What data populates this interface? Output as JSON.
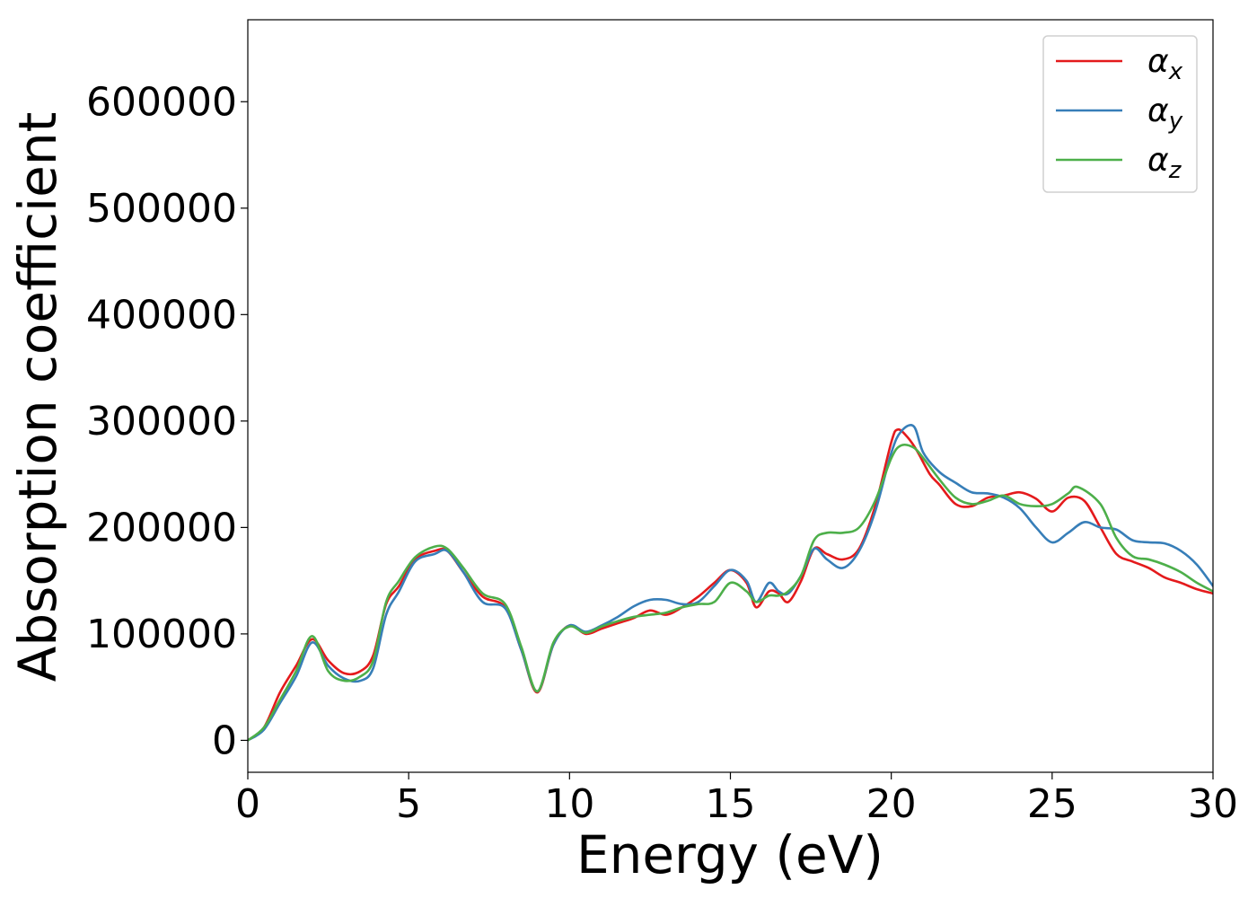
{
  "chart_data": {
    "type": "line",
    "title": "",
    "xlabel": "Energy (eV)",
    "ylabel": "Absorption coefficient",
    "xlim": [
      0,
      30
    ],
    "ylim": [
      -30000,
      677000
    ],
    "xticks": [
      0,
      5,
      10,
      15,
      20,
      25,
      30
    ],
    "yticks": [
      0,
      100000,
      200000,
      300000,
      400000,
      500000,
      600000
    ],
    "grid": false,
    "legend_position": "top-right",
    "series": [
      {
        "name": "α",
        "subscript": "x",
        "color": "#e41a1c",
        "x": [
          0,
          0.5,
          1.0,
          1.5,
          2.0,
          2.5,
          3.0,
          3.5,
          3.9,
          4.3,
          4.7,
          5.2,
          5.8,
          6.2,
          6.7,
          7.3,
          8.0,
          8.5,
          9.0,
          9.5,
          10.0,
          10.5,
          11.0,
          11.5,
          12.0,
          12.5,
          13.0,
          13.5,
          14.0,
          14.5,
          15.0,
          15.5,
          15.8,
          16.2,
          16.5,
          16.8,
          17.2,
          17.6,
          18.0,
          18.5,
          19.0,
          19.5,
          20.0,
          20.2,
          20.5,
          20.8,
          21.2,
          21.5,
          22.0,
          22.5,
          23.0,
          23.5,
          24.0,
          24.5,
          25.0,
          25.5,
          26.0,
          26.5,
          27.0,
          27.5,
          28.0,
          28.5,
          29.0,
          29.5,
          30.0
        ],
        "values": [
          0,
          12000,
          45000,
          70000,
          95000,
          75000,
          63000,
          65000,
          80000,
          128000,
          145000,
          170000,
          178000,
          178000,
          158000,
          135000,
          125000,
          85000,
          45000,
          90000,
          108000,
          100000,
          105000,
          110000,
          115000,
          122000,
          118000,
          125000,
          135000,
          148000,
          160000,
          148000,
          125000,
          140000,
          138000,
          130000,
          150000,
          180000,
          175000,
          170000,
          180000,
          220000,
          280000,
          292000,
          285000,
          272000,
          250000,
          240000,
          222000,
          220000,
          228000,
          230000,
          233000,
          227000,
          215000,
          228000,
          225000,
          200000,
          175000,
          168000,
          162000,
          153000,
          148000,
          142000,
          138000
        ]
      },
      {
        "name": "α",
        "subscript": "y",
        "color": "#377eb8",
        "x": [
          0,
          0.5,
          1.0,
          1.5,
          2.0,
          2.5,
          3.0,
          3.5,
          3.9,
          4.3,
          4.7,
          5.2,
          5.8,
          6.2,
          6.7,
          7.3,
          8.0,
          8.5,
          9.0,
          9.5,
          10.0,
          10.5,
          11.0,
          11.5,
          12.0,
          12.5,
          13.0,
          13.5,
          14.0,
          14.5,
          15.0,
          15.5,
          15.8,
          16.2,
          16.5,
          16.8,
          17.2,
          17.6,
          18.0,
          18.5,
          19.0,
          19.5,
          20.0,
          20.3,
          20.7,
          21.0,
          21.5,
          22.0,
          22.5,
          23.0,
          23.5,
          24.0,
          24.5,
          25.0,
          25.5,
          26.0,
          26.5,
          27.0,
          27.5,
          28.0,
          28.5,
          29.0,
          29.5,
          30.0
        ],
        "values": [
          0,
          10000,
          35000,
          60000,
          92000,
          70000,
          58000,
          56000,
          68000,
          118000,
          140000,
          168000,
          175000,
          178000,
          158000,
          130000,
          124000,
          85000,
          46000,
          90000,
          108000,
          102000,
          108000,
          116000,
          126000,
          132000,
          132000,
          128000,
          130000,
          145000,
          160000,
          150000,
          130000,
          148000,
          140000,
          138000,
          155000,
          180000,
          170000,
          162000,
          178000,
          215000,
          270000,
          290000,
          295000,
          270000,
          252000,
          242000,
          233000,
          232000,
          228000,
          218000,
          200000,
          186000,
          195000,
          205000,
          200000,
          198000,
          188000,
          186000,
          185000,
          178000,
          165000,
          145000
        ]
      },
      {
        "name": "α",
        "subscript": "z",
        "color": "#4daf4a",
        "x": [
          0,
          0.5,
          1.0,
          1.5,
          2.0,
          2.5,
          3.0,
          3.5,
          3.9,
          4.3,
          4.7,
          5.2,
          5.8,
          6.2,
          6.7,
          7.3,
          8.0,
          8.5,
          9.0,
          9.5,
          10.0,
          10.5,
          11.0,
          11.5,
          12.0,
          12.5,
          13.0,
          13.5,
          14.0,
          14.5,
          15.0,
          15.5,
          15.8,
          16.2,
          16.5,
          16.8,
          17.2,
          17.6,
          18.0,
          18.5,
          19.0,
          19.5,
          20.0,
          20.3,
          20.7,
          21.0,
          21.5,
          22.0,
          22.5,
          23.0,
          23.5,
          24.0,
          24.5,
          25.0,
          25.5,
          25.8,
          26.5,
          27.0,
          27.5,
          28.0,
          28.5,
          29.0,
          29.5,
          30.0
        ],
        "values": [
          0,
          12000,
          38000,
          65000,
          98000,
          65000,
          56000,
          60000,
          75000,
          130000,
          150000,
          172000,
          182000,
          180000,
          162000,
          138000,
          128000,
          88000,
          46000,
          92000,
          107000,
          101000,
          107000,
          112000,
          116000,
          118000,
          120000,
          125000,
          128000,
          130000,
          148000,
          140000,
          130000,
          136000,
          136000,
          140000,
          155000,
          188000,
          195000,
          195000,
          200000,
          225000,
          265000,
          277000,
          275000,
          265000,
          245000,
          228000,
          222000,
          225000,
          230000,
          222000,
          220000,
          222000,
          232000,
          238000,
          222000,
          190000,
          173000,
          170000,
          165000,
          158000,
          148000,
          140000
        ]
      }
    ]
  }
}
